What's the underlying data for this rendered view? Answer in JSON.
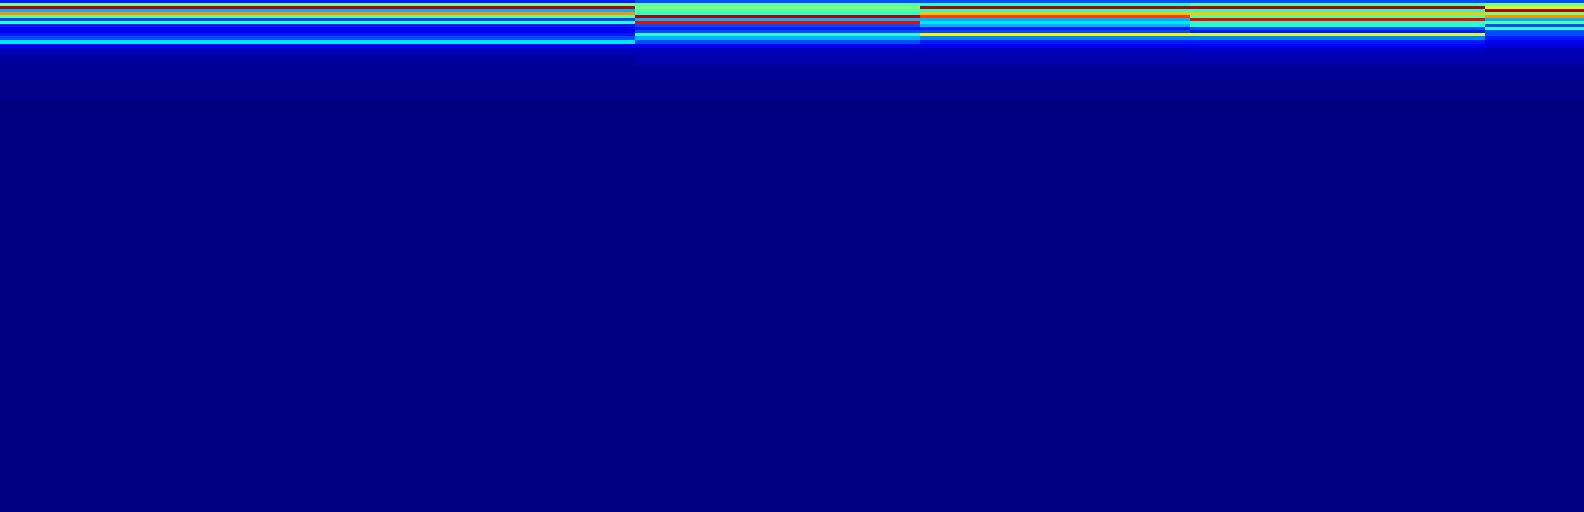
{
  "chart_data": {
    "type": "heatmap",
    "x": [
      0,
      635,
      920,
      1190,
      1485,
      1584
    ],
    "y": [
      0,
      3,
      6,
      9,
      12,
      15,
      18,
      21,
      24,
      27,
      30,
      33,
      36,
      40,
      44,
      48,
      55,
      65,
      80,
      100,
      512
    ],
    "xlim": [
      0,
      1584
    ],
    "ylim": [
      512,
      0
    ],
    "clim": [
      0,
      1
    ],
    "color": "jet",
    "tick_labels": false,
    "cells": [
      [
        0.15,
        0.2,
        0.2,
        0.2,
        0.2
      ],
      [
        0.5,
        0.45,
        0.4,
        0.45,
        0.5
      ],
      [
        0.95,
        0.5,
        0.95,
        0.95,
        0.6
      ],
      [
        0.3,
        0.45,
        0.4,
        0.4,
        0.95
      ],
      [
        0.75,
        0.4,
        0.7,
        0.7,
        0.5
      ],
      [
        0.45,
        0.95,
        0.85,
        0.45,
        0.75
      ],
      [
        0.2,
        0.3,
        0.3,
        0.9,
        0.3
      ],
      [
        0.4,
        0.9,
        0.35,
        0.4,
        0.45
      ],
      [
        0.15,
        0.2,
        0.3,
        0.4,
        0.2
      ],
      [
        0.1,
        0.15,
        0.15,
        0.2,
        0.4
      ],
      [
        0.1,
        0.2,
        0.2,
        0.15,
        0.2
      ],
      [
        0.15,
        0.4,
        0.65,
        0.6,
        0.2
      ],
      [
        0.2,
        0.3,
        0.25,
        0.25,
        0.15
      ],
      [
        0.35,
        0.2,
        0.15,
        0.15,
        0.1
      ],
      [
        0.1,
        0.1,
        0.1,
        0.1,
        0.08
      ],
      [
        0.05,
        0.05,
        0.05,
        0.06,
        0.05
      ],
      [
        0.03,
        0.04,
        0.04,
        0.04,
        0.04
      ],
      [
        0.02,
        0.02,
        0.02,
        0.02,
        0.02
      ],
      [
        0.01,
        0.01,
        0.01,
        0.01,
        0.01
      ],
      [
        0,
        0,
        0,
        0,
        0
      ]
    ]
  }
}
